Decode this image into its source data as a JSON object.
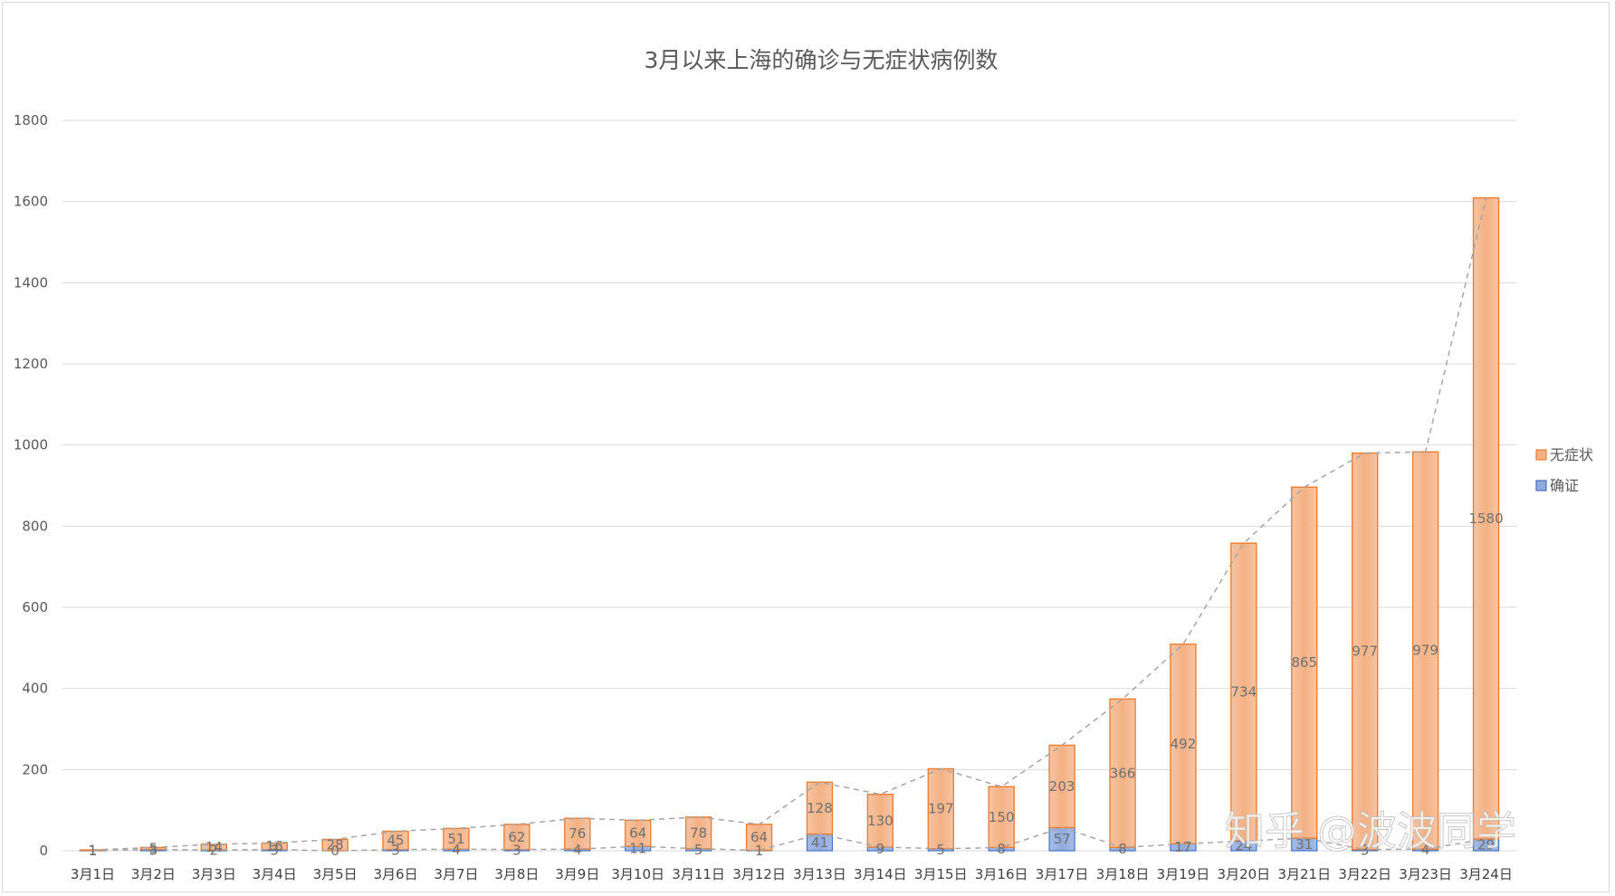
{
  "chart_data": {
    "type": "bar",
    "stacked": true,
    "title": "3月以来上海的确诊与无症状病例数",
    "xlabel": "",
    "ylabel": "",
    "ylim": [
      0,
      1800
    ],
    "yticks": [
      0,
      200,
      400,
      600,
      800,
      1000,
      1200,
      1400,
      1600,
      1800
    ],
    "grid": true,
    "legend_position": "right",
    "categories": [
      "3月1日",
      "3月2日",
      "3月3日",
      "3月4日",
      "3月5日",
      "3月6日",
      "3月7日",
      "3月8日",
      "3月9日",
      "3月10日",
      "3月11日",
      "3月12日",
      "3月13日",
      "3月14日",
      "3月15日",
      "3月16日",
      "3月17日",
      "3月18日",
      "3月19日",
      "3月20日",
      "3月21日",
      "3月22日",
      "3月23日",
      "3月24日"
    ],
    "series": [
      {
        "name": "确证",
        "color": "#8faadc",
        "stroke": "#4472c4",
        "values": [
          1,
          3,
          2,
          3,
          0,
          3,
          4,
          3,
          4,
          11,
          5,
          1,
          41,
          9,
          5,
          8,
          57,
          8,
          17,
          24,
          31,
          3,
          4,
          29
        ]
      },
      {
        "name": "无症状",
        "color": "#f4b183",
        "stroke": "#ed7d31",
        "values": [
          1,
          5,
          14,
          16,
          28,
          45,
          51,
          62,
          76,
          64,
          78,
          64,
          128,
          130,
          197,
          150,
          203,
          366,
          492,
          734,
          865,
          977,
          979,
          1580
        ]
      }
    ]
  },
  "watermark": "知乎 @波波同学"
}
